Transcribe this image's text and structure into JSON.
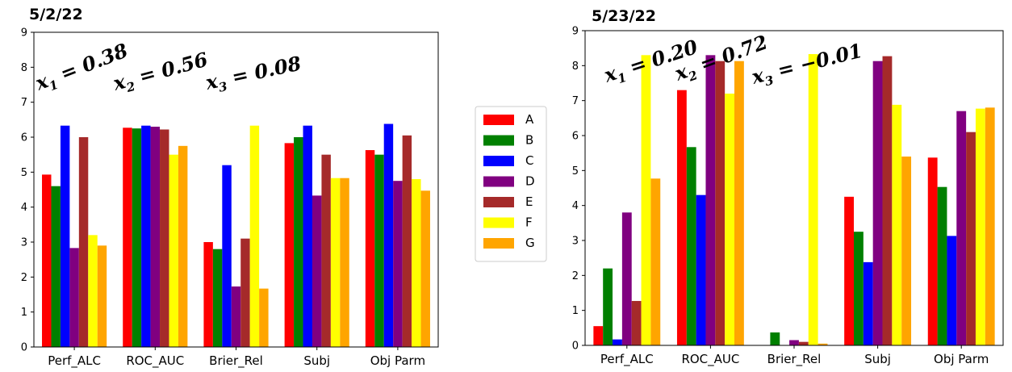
{
  "legend": {
    "entries": [
      {
        "name": "A",
        "color": "#ff0000"
      },
      {
        "name": "B",
        "color": "#008000"
      },
      {
        "name": "C",
        "color": "#0000ff"
      },
      {
        "name": "D",
        "color": "#800080"
      },
      {
        "name": "E",
        "color": "#a52a2a"
      },
      {
        "name": "F",
        "color": "#ffff00"
      },
      {
        "name": "G",
        "color": "#ffa500"
      }
    ]
  },
  "chart_data": [
    {
      "type": "bar",
      "title": "5/2/22",
      "categories": [
        "Perf_ALC",
        "ROC_AUC",
        "Brier_Rel",
        "Subj",
        "Obj Parm"
      ],
      "ylim": [
        0,
        9
      ],
      "yticks": [
        "0",
        "1",
        "2",
        "3",
        "4",
        "5",
        "6",
        "7",
        "8",
        "9"
      ],
      "grid": false,
      "annotations": [
        {
          "var": "x",
          "sub": "1",
          "text": " = 0.38"
        },
        {
          "var": "x",
          "sub": "2",
          "text": " = 0.56"
        },
        {
          "var": "x",
          "sub": "3",
          "text": " = 0.08"
        }
      ],
      "series": [
        {
          "name": "A",
          "values": [
            4.93,
            6.27,
            3.0,
            5.83,
            5.63
          ]
        },
        {
          "name": "B",
          "values": [
            4.6,
            6.25,
            2.8,
            6.0,
            5.5
          ]
        },
        {
          "name": "C",
          "values": [
            6.33,
            6.33,
            5.2,
            6.33,
            6.38
          ]
        },
        {
          "name": "D",
          "values": [
            2.83,
            6.3,
            1.73,
            4.33,
            4.75
          ]
        },
        {
          "name": "E",
          "values": [
            6.0,
            6.22,
            3.1,
            5.5,
            6.05
          ]
        },
        {
          "name": "F",
          "values": [
            3.2,
            5.5,
            6.33,
            4.83,
            4.8
          ]
        },
        {
          "name": "G",
          "values": [
            2.9,
            5.75,
            1.67,
            4.83,
            4.47
          ]
        }
      ]
    },
    {
      "type": "bar",
      "title": "5/23/22",
      "categories": [
        "Perf_ALC",
        "ROC_AUC",
        "Brier_Rel",
        "Subj",
        "Obj Parm"
      ],
      "ylim": [
        0,
        9
      ],
      "yticks": [
        "0",
        "1",
        "2",
        "3",
        "4",
        "5",
        "6",
        "7",
        "8",
        "9"
      ],
      "grid": false,
      "annotations": [
        {
          "var": "x",
          "sub": "1",
          "text": " = 0.20"
        },
        {
          "var": "x",
          "sub": "2",
          "text": " = 0.72"
        },
        {
          "var": "x",
          "sub": "3",
          "text": " = −0.01"
        }
      ],
      "series": [
        {
          "name": "A",
          "values": [
            0.55,
            7.3,
            0.0,
            4.25,
            5.37
          ]
        },
        {
          "name": "B",
          "values": [
            2.2,
            5.67,
            0.37,
            3.25,
            4.53
          ]
        },
        {
          "name": "C",
          "values": [
            0.17,
            4.3,
            0.0,
            2.38,
            3.13
          ]
        },
        {
          "name": "D",
          "values": [
            3.8,
            8.3,
            0.15,
            8.13,
            6.7
          ]
        },
        {
          "name": "E",
          "values": [
            1.27,
            8.13,
            0.1,
            8.27,
            6.1
          ]
        },
        {
          "name": "F",
          "values": [
            8.3,
            7.2,
            8.33,
            6.88,
            6.77
          ]
        },
        {
          "name": "G",
          "values": [
            4.77,
            8.13,
            0.05,
            5.4,
            6.8
          ]
        }
      ]
    }
  ]
}
